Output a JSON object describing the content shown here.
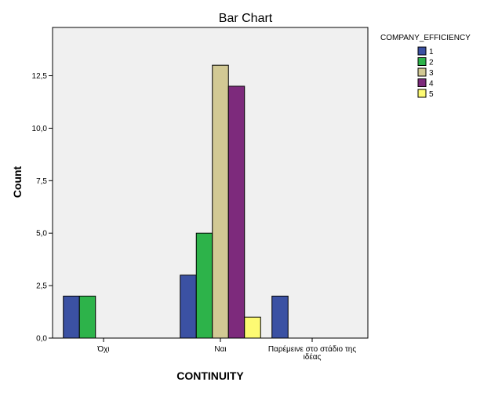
{
  "chart_data": {
    "type": "bar",
    "title": "Bar Chart",
    "xlabel": "CONTINUITY",
    "ylabel": "Count",
    "categories": [
      "Όχι",
      "Ναι",
      "Παρέμεινε στο στάδιο της ιδέας"
    ],
    "category_lines": [
      [
        "Όχι"
      ],
      [
        "Ναι"
      ],
      [
        "Παρέμεινε στο στάδιο της",
        "ιδέας"
      ]
    ],
    "ylim": [
      0,
      14.8
    ],
    "yticks": [
      0,
      2.5,
      5.0,
      7.5,
      10.0,
      12.5
    ],
    "ytick_labels": [
      "0,0",
      "2,5",
      "5,0",
      "7,5",
      "10,0",
      "12,5"
    ],
    "grid": false,
    "legend_title": "COMPANY_EFFICIENCY",
    "legend_position": "top-right",
    "series": [
      {
        "name": "1",
        "color": "#3b51a3",
        "values": [
          2,
          3,
          2
        ]
      },
      {
        "name": "2",
        "color": "#2db34a",
        "values": [
          2,
          5,
          0
        ]
      },
      {
        "name": "3",
        "color": "#d2c994",
        "values": [
          0,
          13,
          0
        ]
      },
      {
        "name": "4",
        "color": "#7d2a7c",
        "values": [
          0,
          12,
          0
        ]
      },
      {
        "name": "5",
        "color": "#fdfa73",
        "values": [
          0,
          1,
          0
        ]
      }
    ],
    "plot_background": "#f0f0f0"
  }
}
